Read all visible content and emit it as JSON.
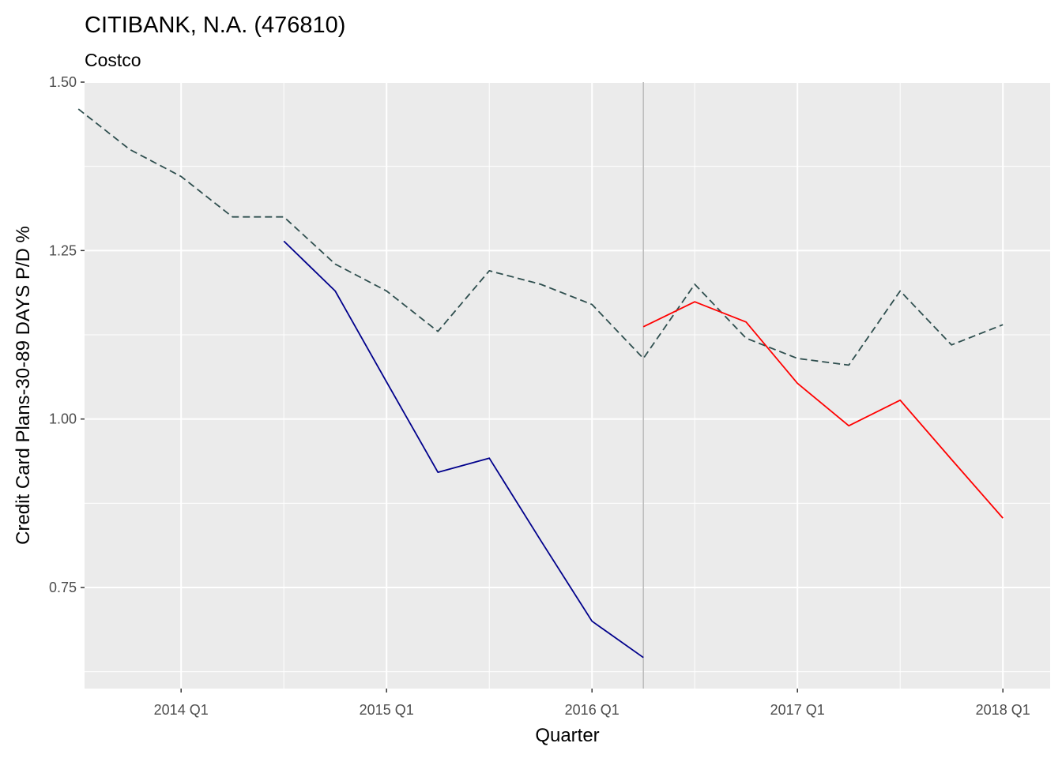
{
  "chart_data": {
    "type": "line",
    "title": "CITIBANK, N.A. (476810)",
    "subtitle": "Costco",
    "xlabel": "Quarter",
    "ylabel": "Credit Card Plans-30-89 DAYS P/D %",
    "x_tick_labels": [
      "2014 Q1",
      "2015 Q1",
      "2016 Q1",
      "2017 Q1",
      "2018 Q1"
    ],
    "x_tick_positions": [
      2014.0,
      2015.0,
      2016.0,
      2017.0,
      2018.0
    ],
    "xlim": [
      2013.53,
      2018.23
    ],
    "y_tick_labels": [
      "0.75",
      "1.00",
      "1.25",
      "1.50"
    ],
    "y_tick_positions": [
      0.75,
      1.0,
      1.25,
      1.5
    ],
    "ylim": [
      0.6,
      1.5
    ],
    "grid": true,
    "legend": "none",
    "vline_x": 2016.25,
    "series": [
      {
        "color": "#2F4F4F",
        "dash": "dashed",
        "x": [
          2013.5,
          2013.75,
          2014.0,
          2014.25,
          2014.5,
          2014.75,
          2015.0,
          2015.25,
          2015.5,
          2015.75,
          2016.0,
          2016.25,
          2016.5,
          2016.75,
          2017.0,
          2017.25,
          2017.5,
          2017.75,
          2018.0
        ],
        "y": [
          1.46,
          1.4,
          1.36,
          1.3,
          1.3,
          1.23,
          1.19,
          1.13,
          1.22,
          1.2,
          1.17,
          1.09,
          1.2,
          1.12,
          1.09,
          1.08,
          1.19,
          1.11,
          1.14
        ]
      },
      {
        "color": "#00008B",
        "dash": "solid",
        "x": [
          2014.5,
          2014.75,
          2015.0,
          2015.25,
          2015.5,
          2015.75,
          2016.0,
          2016.25
        ],
        "y": [
          1.264,
          1.19,
          1.055,
          0.921,
          0.942,
          0.82,
          0.7,
          0.646
        ]
      },
      {
        "color": "#FF0000",
        "dash": "solid",
        "x": [
          2016.25,
          2016.5,
          2016.75,
          2017.0,
          2017.25,
          2017.5,
          2017.75,
          2018.0
        ],
        "y": [
          1.137,
          1.174,
          1.144,
          1.053,
          0.99,
          1.028,
          0.94,
          0.853
        ]
      }
    ]
  }
}
